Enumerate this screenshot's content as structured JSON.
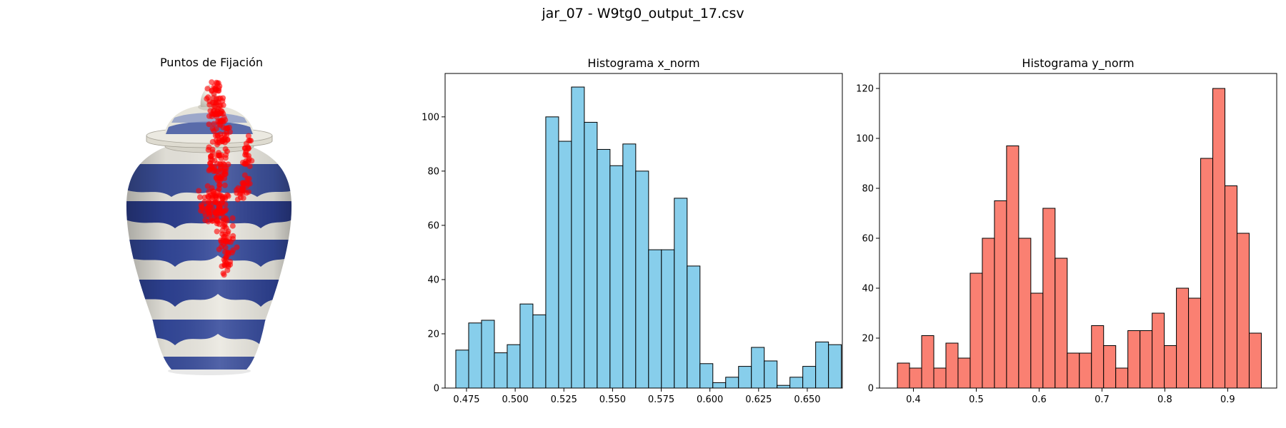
{
  "figure": {
    "title": "jar_07 - W9tg0_output_17.csv"
  },
  "image_panel": {
    "title": "Puntos de Fijación",
    "icon": "ceramic-jar-image"
  },
  "colors": {
    "hist_x_fill": "#87CEEB",
    "hist_y_fill": "#FA8072",
    "edge": "#000000",
    "fixation": "#ff0000"
  },
  "chart_data": [
    {
      "type": "bar",
      "title": "Histograma x_norm",
      "xlabel": "",
      "ylabel": "",
      "xlim": [
        0.464,
        0.668
      ],
      "ylim": [
        0,
        116
      ],
      "grid": false,
      "bin_edges_start": 0.4695,
      "bin_width": 0.0066,
      "values": [
        14,
        24,
        25,
        13,
        16,
        31,
        27,
        100,
        91,
        111,
        98,
        88,
        82,
        90,
        80,
        51,
        51,
        70,
        45,
        9,
        2,
        4,
        8,
        15,
        10,
        1,
        4,
        8,
        17,
        16
      ],
      "xticks": [
        "0.475",
        "0.500",
        "0.525",
        "0.550",
        "0.575",
        "0.600",
        "0.625",
        "0.650"
      ],
      "yticks": [
        "0",
        "20",
        "40",
        "60",
        "80",
        "100"
      ]
    },
    {
      "type": "bar",
      "title": "Histograma y_norm",
      "xlabel": "",
      "ylabel": "",
      "xlim": [
        0.346,
        0.978
      ],
      "ylim": [
        0,
        126
      ],
      "grid": false,
      "bin_edges_start": 0.3745,
      "bin_width": 0.0193,
      "values": [
        10,
        8,
        21,
        8,
        18,
        12,
        46,
        60,
        75,
        97,
        60,
        38,
        72,
        52,
        14,
        14,
        25,
        17,
        8,
        23,
        23,
        30,
        17,
        40,
        36,
        92,
        120,
        81,
        62,
        22
      ],
      "xticks": [
        "0.4",
        "0.5",
        "0.6",
        "0.7",
        "0.8",
        "0.9"
      ],
      "yticks": [
        "0",
        "20",
        "40",
        "60",
        "80",
        "100",
        "120"
      ]
    }
  ]
}
